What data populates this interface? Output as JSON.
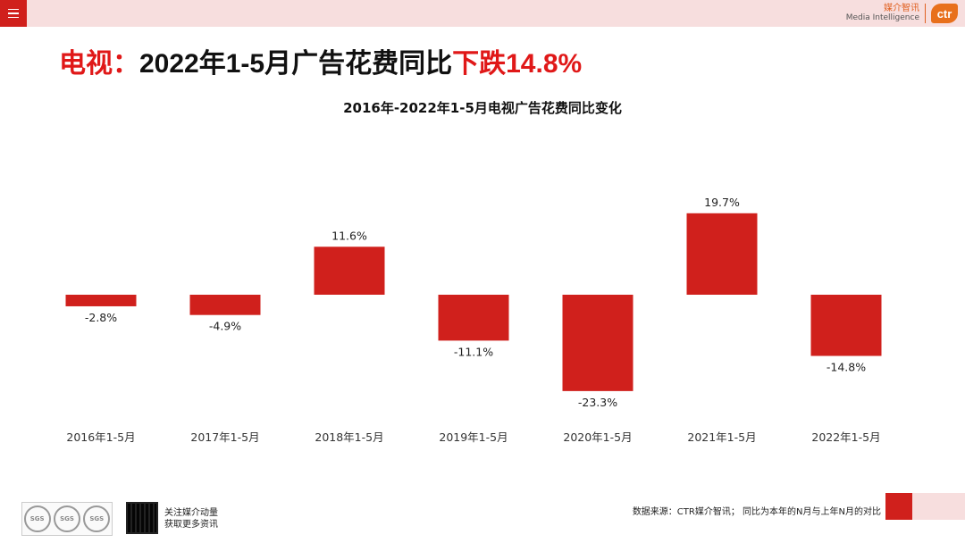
{
  "header": {
    "menu_icon": "menu-icon",
    "logo_cn": "媒介智讯",
    "logo_en": "Media Intelligence",
    "logo_mark": "ctr"
  },
  "headline": {
    "part1": "电视：",
    "part2": "2022年1-5月广告花费同比",
    "part3": "下跌14.8%"
  },
  "chart_data": {
    "type": "bar",
    "title": "2016年-2022年1-5月电视广告花费同比变化",
    "categories": [
      "2016年1-5月",
      "2017年1-5月",
      "2018年1-5月",
      "2019年1-5月",
      "2020年1-5月",
      "2021年1-5月",
      "2022年1-5月"
    ],
    "values": [
      -2.8,
      -4.9,
      11.6,
      -11.1,
      -23.3,
      19.7,
      -14.8
    ],
    "labels": [
      "-2.8%",
      "-4.9%",
      "11.6%",
      "-11.1%",
      "-23.3%",
      "19.7%",
      "-14.8%"
    ],
    "unit": "%",
    "bar_color": "#d0201c",
    "ylim": [
      -23.3,
      19.7
    ],
    "grid": false
  },
  "footer": {
    "source": "数据来源：CTR媒介智讯；  同比为本年的N月与上年N月的对比",
    "qr_line1": "关注媒介动量",
    "qr_line2": "获取更多资讯",
    "cert_seal": "SGS"
  }
}
